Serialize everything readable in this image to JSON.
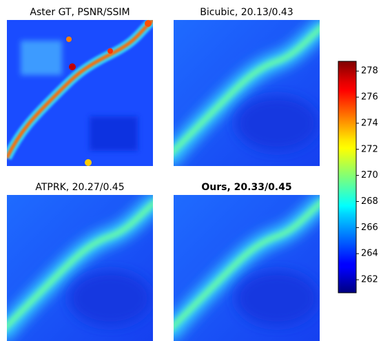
{
  "panels": [
    {
      "title": "Aster GT, PSNR/SSIM",
      "bold": false
    },
    {
      "title": "Bicubic, 20.13/0.43",
      "bold": false
    },
    {
      "title": "ATPRK, 20.27/0.45",
      "bold": false
    },
    {
      "title": "Ours, 20.33/0.45",
      "bold": true
    }
  ],
  "colorbar": {
    "colormap": "jet",
    "lim": [
      261,
      278.75
    ],
    "ticks": [
      262,
      264,
      266,
      268,
      270,
      272,
      274,
      276,
      278
    ]
  }
}
